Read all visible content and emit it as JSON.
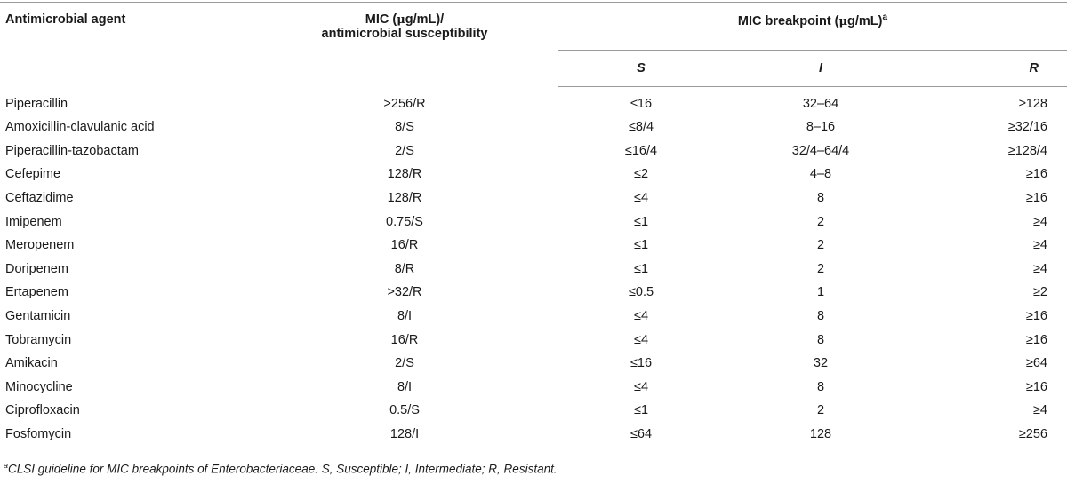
{
  "table": {
    "header": {
      "agent": "Antimicrobial agent",
      "mic_line1_prefix": "MIC (",
      "mic_mu": "μ",
      "mic_line1_suffix": "g/mL)/",
      "mic_line2": "antimicrobial susceptibility",
      "breakpoint_prefix": "MIC breakpoint (",
      "breakpoint_mu": "μ",
      "breakpoint_suffix": "g/mL)",
      "breakpoint_sup": "a",
      "s": "S",
      "i": "I",
      "r": "R"
    },
    "rows": [
      {
        "agent": "Piperacillin",
        "mic": ">256/R",
        "s": "≤16",
        "i": "32–64",
        "r": "≥128"
      },
      {
        "agent": "Amoxicillin-clavulanic acid",
        "mic": "8/S",
        "s": "≤8/4",
        "i": "8–16",
        "r": "≥32/16"
      },
      {
        "agent": "Piperacillin-tazobactam",
        "mic": "2/S",
        "s": "≤16/4",
        "i": "32/4–64/4",
        "r": "≥128/4"
      },
      {
        "agent": "Cefepime",
        "mic": "128/R",
        "s": "≤2",
        "i": "4–8",
        "r": "≥16"
      },
      {
        "agent": "Ceftazidime",
        "mic": "128/R",
        "s": "≤4",
        "i": "8",
        "r": "≥16"
      },
      {
        "agent": "Imipenem",
        "mic": "0.75/S",
        "s": "≤1",
        "i": "2",
        "r": "≥4"
      },
      {
        "agent": "Meropenem",
        "mic": "16/R",
        "s": "≤1",
        "i": "2",
        "r": "≥4"
      },
      {
        "agent": "Doripenem",
        "mic": "8/R",
        "s": "≤1",
        "i": "2",
        "r": "≥4"
      },
      {
        "agent": "Ertapenem",
        "mic": ">32/R",
        "s": "≤0.5",
        "i": "1",
        "r": "≥2"
      },
      {
        "agent": "Gentamicin",
        "mic": "8/I",
        "s": "≤4",
        "i": "8",
        "r": "≥16"
      },
      {
        "agent": "Tobramycin",
        "mic": "16/R",
        "s": "≤4",
        "i": "8",
        "r": "≥16"
      },
      {
        "agent": "Amikacin",
        "mic": "2/S",
        "s": "≤16",
        "i": "32",
        "r": "≥64"
      },
      {
        "agent": "Minocycline",
        "mic": "8/I",
        "s": "≤4",
        "i": "8",
        "r": "≥16"
      },
      {
        "agent": "Ciprofloxacin",
        "mic": "0.5/S",
        "s": "≤1",
        "i": "2",
        "r": "≥4"
      },
      {
        "agent": "Fosfomycin",
        "mic": "128/I",
        "s": "≤64",
        "i": "128",
        "r": "≥256"
      }
    ]
  },
  "footnote": {
    "sup": "a",
    "text": "CLSI guideline for MIC breakpoints of Enterobacteriaceae. S, Susceptible; I, Intermediate; R, Resistant."
  }
}
